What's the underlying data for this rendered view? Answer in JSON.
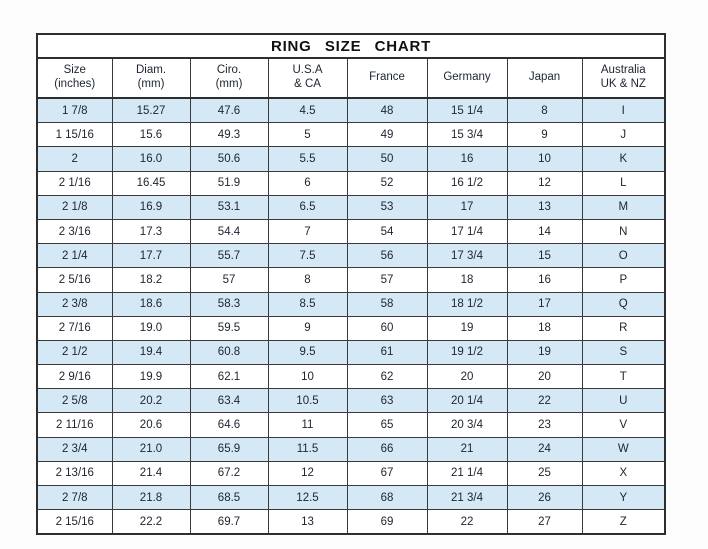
{
  "title": "RING SIZE CHART",
  "chart_data": {
    "type": "table",
    "title": "RING SIZE CHART",
    "columns": [
      "Size\n(inches)",
      "Diam.\n(mm)",
      "Ciro.\n(mm)",
      "U.S.A\n& CA",
      "France",
      "Germany",
      "Japan",
      "Australia\nUK & NZ"
    ],
    "rows": [
      [
        "1 7/8",
        "15.27",
        "47.6",
        "4.5",
        "48",
        "15 1/4",
        "8",
        "I"
      ],
      [
        "1 15/16",
        "15.6",
        "49.3",
        "5",
        "49",
        "15 3/4",
        "9",
        "J"
      ],
      [
        "2",
        "16.0",
        "50.6",
        "5.5",
        "50",
        "16",
        "10",
        "K"
      ],
      [
        "2 1/16",
        "16.45",
        "51.9",
        "6",
        "52",
        "16 1/2",
        "12",
        "L"
      ],
      [
        "2 1/8",
        "16.9",
        "53.1",
        "6.5",
        "53",
        "17",
        "13",
        "M"
      ],
      [
        "2 3/16",
        "17.3",
        "54.4",
        "7",
        "54",
        "17 1/4",
        "14",
        "N"
      ],
      [
        "2 1/4",
        "17.7",
        "55.7",
        "7.5",
        "56",
        "17 3/4",
        "15",
        "O"
      ],
      [
        "2 5/16",
        "18.2",
        "57",
        "8",
        "57",
        "18",
        "16",
        "P"
      ],
      [
        "2 3/8",
        "18.6",
        "58.3",
        "8.5",
        "58",
        "18 1/2",
        "17",
        "Q"
      ],
      [
        "2 7/16",
        "19.0",
        "59.5",
        "9",
        "60",
        "19",
        "18",
        "R"
      ],
      [
        "2 1/2",
        "19.4",
        "60.8",
        "9.5",
        "61",
        "19 1/2",
        "19",
        "S"
      ],
      [
        "2 9/16",
        "19.9",
        "62.1",
        "10",
        "62",
        "20",
        "20",
        "T"
      ],
      [
        "2 5/8",
        "20.2",
        "63.4",
        "10.5",
        "63",
        "20 1/4",
        "22",
        "U"
      ],
      [
        "2 11/16",
        "20.6",
        "64.6",
        "11",
        "65",
        "20 3/4",
        "23",
        "V"
      ],
      [
        "2 3/4",
        "21.0",
        "65.9",
        "11.5",
        "66",
        "21",
        "24",
        "W"
      ],
      [
        "2 13/16",
        "21.4",
        "67.2",
        "12",
        "67",
        "21 1/4",
        "25",
        "X"
      ],
      [
        "2 7/8",
        "21.8",
        "68.5",
        "12.5",
        "68",
        "21 3/4",
        "26",
        "Y"
      ],
      [
        "2 15/16",
        "22.2",
        "69.7",
        "13",
        "69",
        "22",
        "27",
        "Z"
      ]
    ],
    "layout_hints": {
      "striped_rows": "odd data rows shaded light blue starting with first row",
      "title_row_spans_all_columns": true,
      "grid": "full black gridlines, thicker outer border"
    },
    "colors": {
      "stripe_row": "#d5e8f5",
      "plain_row": "#ffffff",
      "border": "#3a3a3a",
      "outer_border": "#2e2e2e",
      "text": "#1d2430",
      "title_text": "#111111",
      "page_background": "#fdfdfd"
    }
  }
}
